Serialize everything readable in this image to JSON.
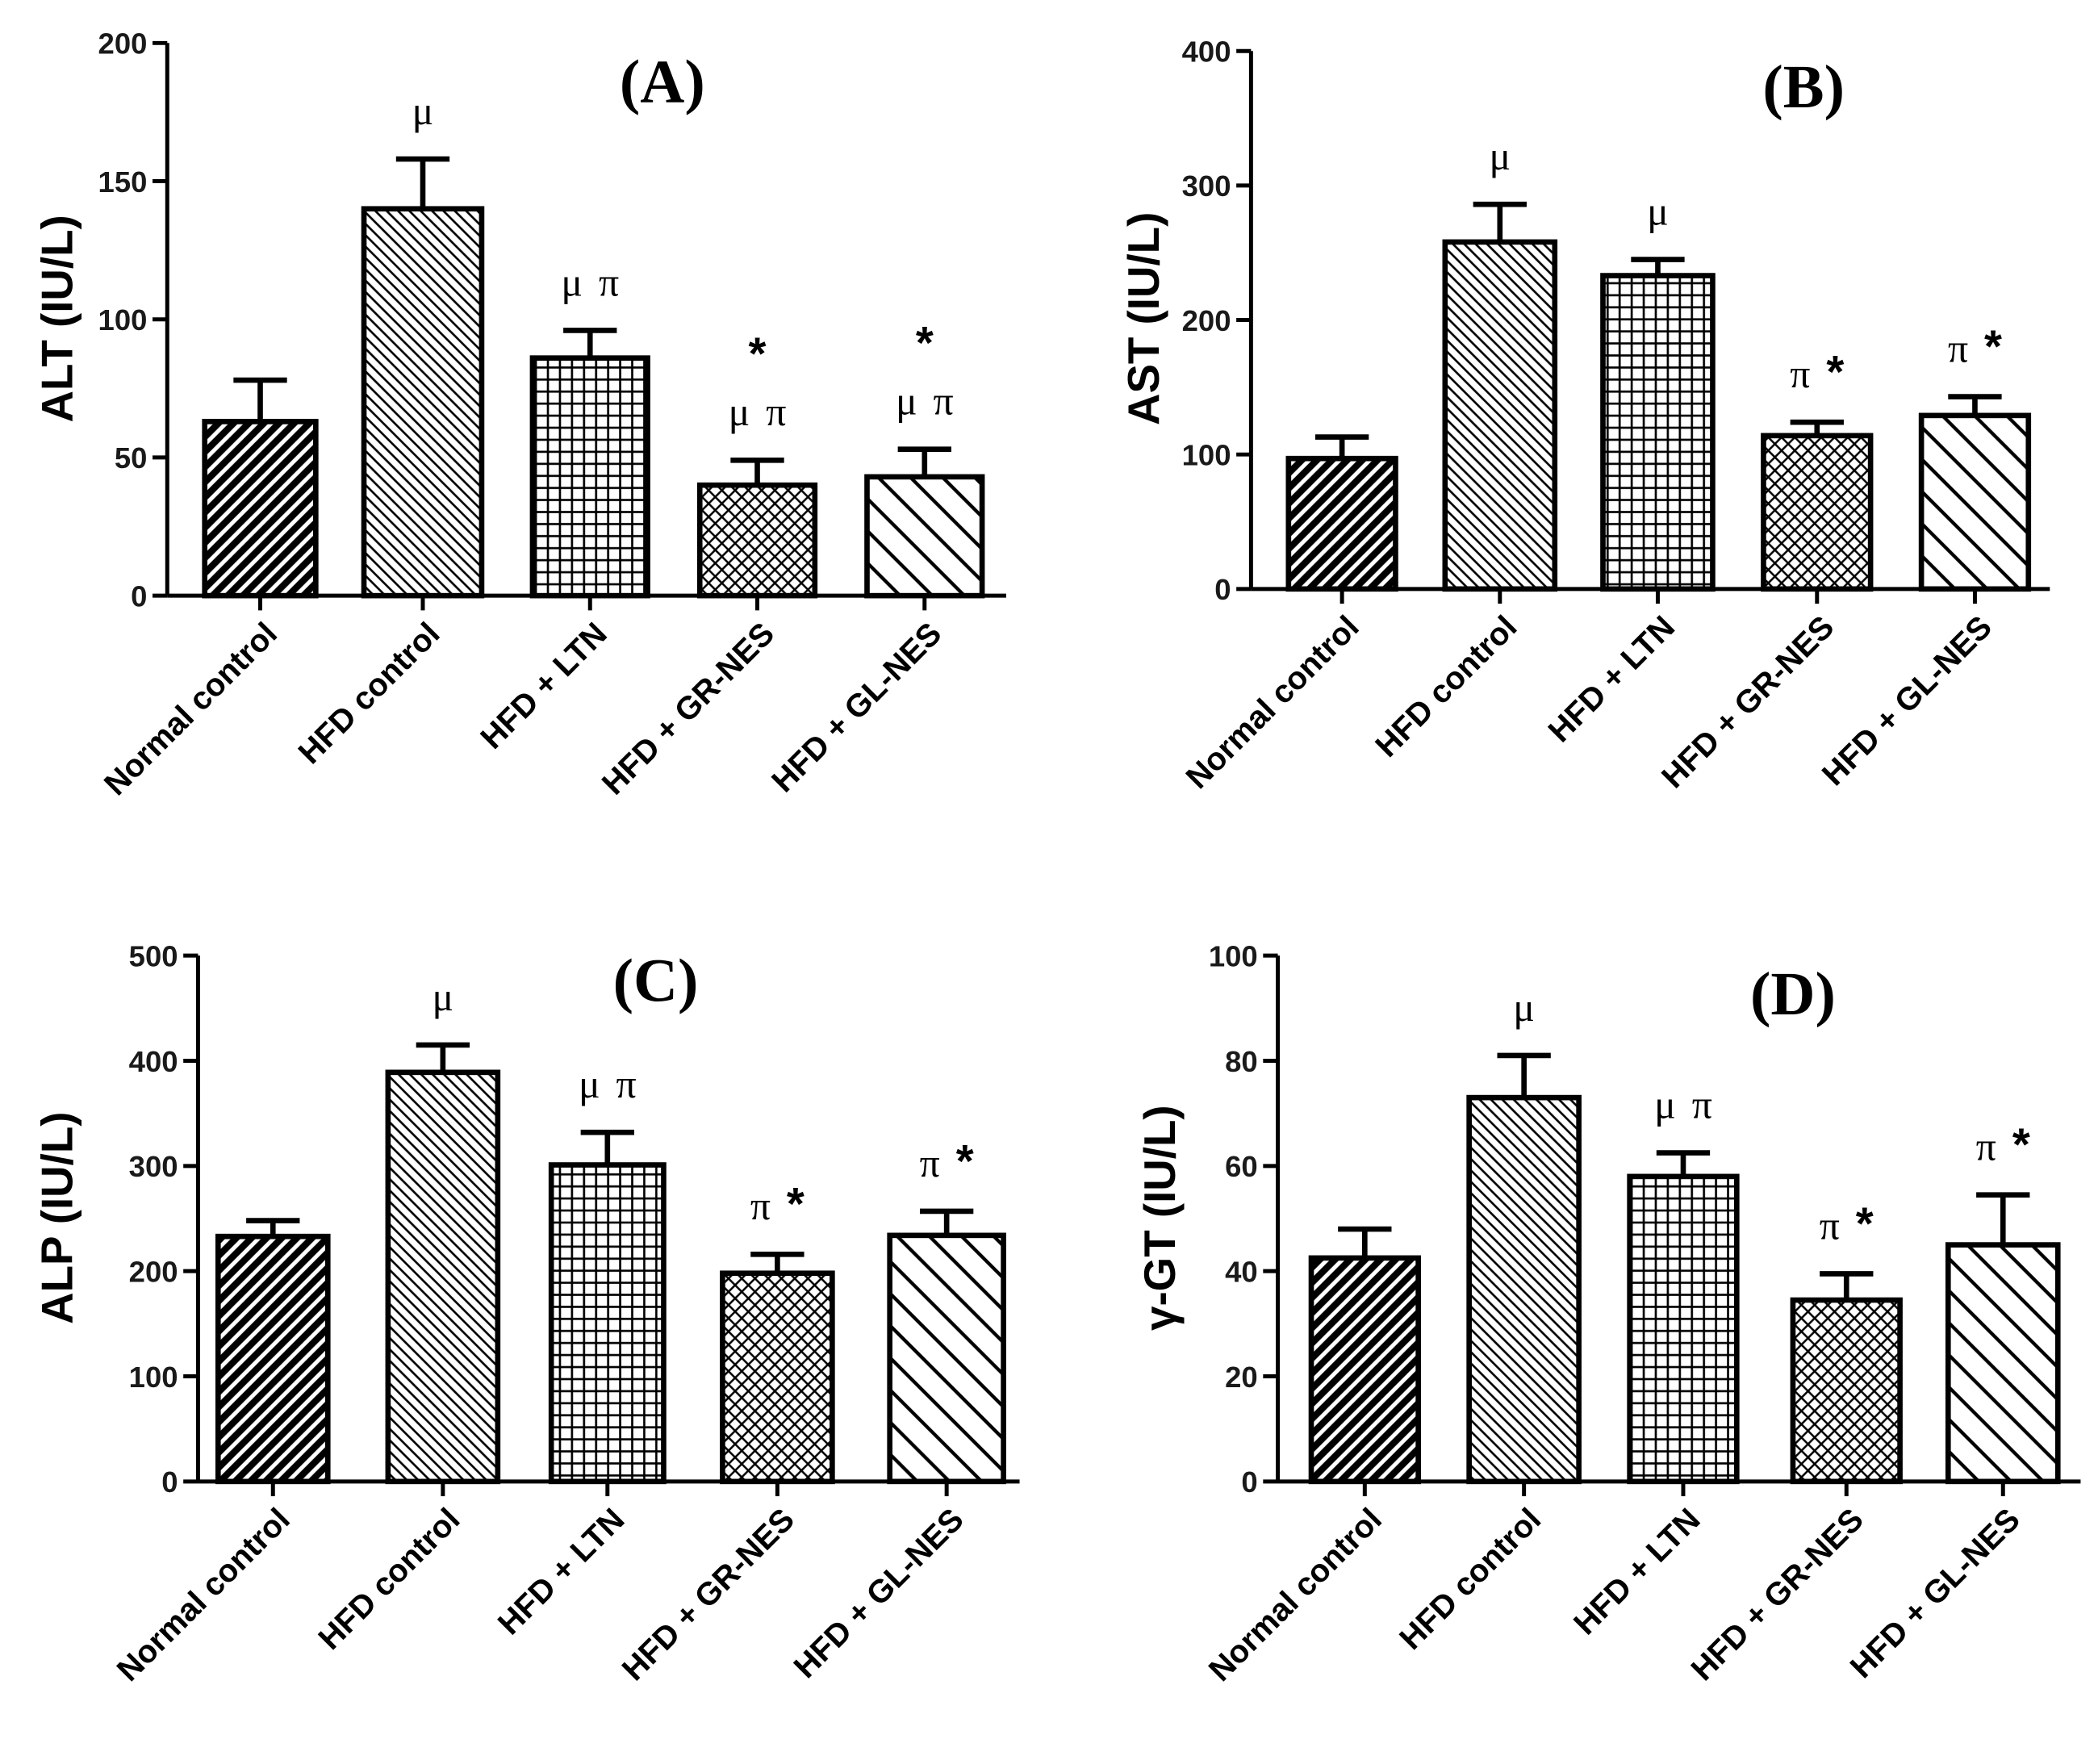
{
  "chart_data": [
    {
      "panel": "A",
      "type": "bar",
      "title": "(A)",
      "ylabel": "ALT (IU/L)",
      "xlabel": "",
      "categories": [
        "Normal control",
        "HFD control",
        "HFD + LTN",
        "HFD + GR-NES",
        "HFD + GL-NES"
      ],
      "values": [
        63,
        140,
        86,
        40,
        43
      ],
      "errors": [
        15,
        18,
        10,
        9,
        10
      ],
      "ylim": [
        0,
        200
      ],
      "yticks": [
        "0",
        "50",
        "100",
        "150",
        "200"
      ],
      "annotations": [
        [],
        [
          [
            "μ"
          ]
        ],
        [
          [
            "μ",
            "π"
          ]
        ],
        [
          [
            "*"
          ],
          [
            "μ",
            "π"
          ]
        ],
        [
          [
            "*"
          ],
          [
            "μ",
            "π"
          ]
        ]
      ]
    },
    {
      "panel": "B",
      "type": "bar",
      "title": "(B)",
      "ylabel": "AST (IU/L)",
      "xlabel": "",
      "categories": [
        "Normal control",
        "HFD control",
        "HFD + LTN",
        "HFD + GR-NES",
        "HFD + GL-NES"
      ],
      "values": [
        97,
        258,
        233,
        114,
        129
      ],
      "errors": [
        16,
        28,
        12,
        10,
        14
      ],
      "ylim": [
        0,
        400
      ],
      "yticks": [
        "0",
        "100",
        "200",
        "300",
        "400"
      ],
      "annotations": [
        [],
        [
          [
            "μ"
          ]
        ],
        [
          [
            "μ"
          ]
        ],
        [
          [
            "π",
            "*"
          ]
        ],
        [
          [
            "π",
            "*"
          ]
        ]
      ]
    },
    {
      "panel": "C",
      "type": "bar",
      "title": "(C)",
      "ylabel": "ALP (IU/L)",
      "xlabel": "",
      "categories": [
        "Normal control",
        "HFD control",
        "HFD + LTN",
        "HFD + GR-NES",
        "HFD + GL-NES"
      ],
      "values": [
        233,
        389,
        301,
        198,
        234
      ],
      "errors": [
        15,
        26,
        31,
        18,
        23
      ],
      "ylim": [
        0,
        500
      ],
      "yticks": [
        "0",
        "100",
        "200",
        "300",
        "400",
        "500"
      ],
      "annotations": [
        [],
        [
          [
            "μ"
          ]
        ],
        [
          [
            "μ",
            "π"
          ]
        ],
        [
          [
            "π",
            "*"
          ]
        ],
        [
          [
            "π",
            "*"
          ]
        ]
      ]
    },
    {
      "panel": "D",
      "type": "bar",
      "title": "(D)",
      "ylabel": "γ-GT (IU/L)",
      "xlabel": "",
      "categories": [
        "Normal control",
        "HFD control",
        "HFD + LTN",
        "HFD + GR-NES",
        "HFD + GL-NES"
      ],
      "values": [
        42.5,
        73,
        58,
        34.5,
        45
      ],
      "errors": [
        5.5,
        8,
        4.5,
        5,
        9.5
      ],
      "ylim": [
        0,
        100
      ],
      "yticks": [
        "0",
        "20",
        "40",
        "60",
        "80",
        "100"
      ],
      "annotations": [
        [],
        [
          [
            "μ"
          ]
        ],
        [
          [
            "μ",
            "π"
          ]
        ],
        [
          [
            "π",
            "*"
          ]
        ],
        [
          [
            "π",
            "*"
          ]
        ]
      ]
    }
  ]
}
